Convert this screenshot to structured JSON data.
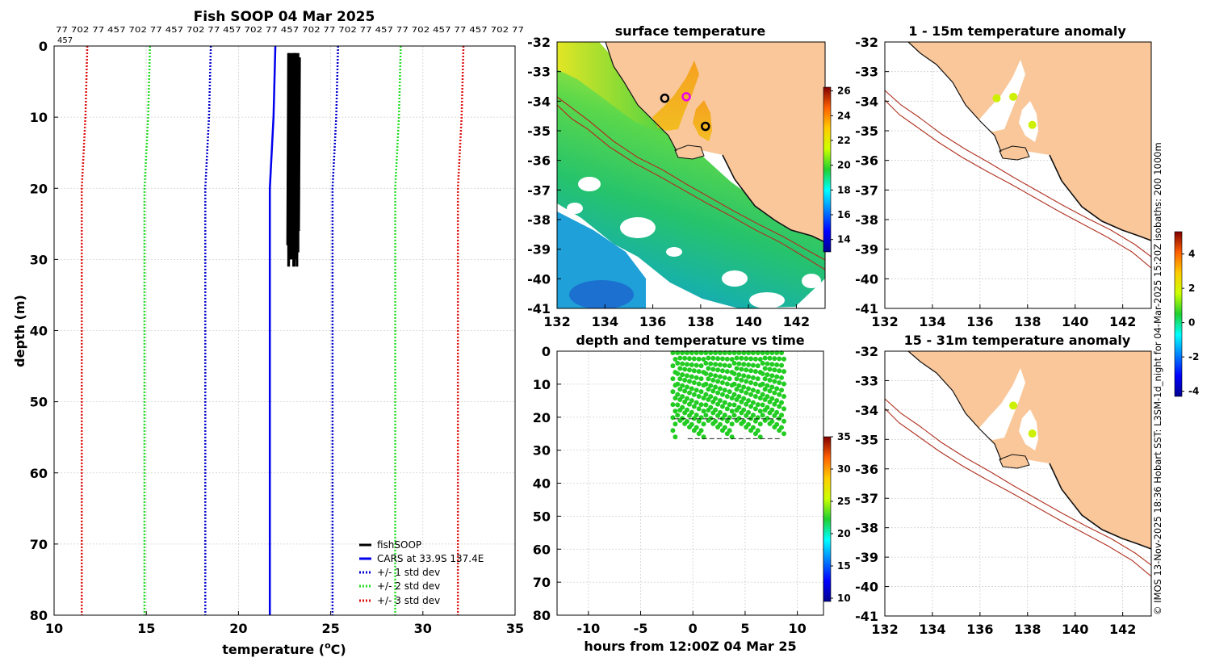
{
  "colors": {
    "land": "#f9c79a",
    "coast": "#111111",
    "isobath": "#b03020",
    "profile": "#000000",
    "cars": "#0000ee",
    "std1": "#0000cc",
    "std2": "#22dd22",
    "std3": "#dd1111",
    "fishDots": "#22cc22"
  },
  "chart_data": [
    {
      "id": "profile",
      "type": "line",
      "title": "Fish SOOP 04 Mar 2025",
      "xlabel": "temperature (",
      "xlabel_sup": "o",
      "xlabel_end": "C)",
      "ylabel": "depth (m)",
      "xlim": [
        10,
        35
      ],
      "ylim": [
        80,
        0
      ],
      "xticks": [
        "10",
        "15",
        "20",
        "25",
        "30",
        "35"
      ],
      "yticks": [
        "0",
        "10",
        "20",
        "30",
        "40",
        "50",
        "60",
        "70",
        "80"
      ],
      "grid": true,
      "top_strip_text": "77 702 77 457 702 77 457 702 77 457 702 77 457 702 77 702 77 457 77 702 457 77 457 702 77",
      "top_strip_text2": "457",
      "legend_position": "bottom-right",
      "series": [
        {
          "name": "fishSOOP",
          "kind": "band",
          "depth_min": 1,
          "depth_max": 31,
          "temp_low": 22.6,
          "temp_high": 23.3
        },
        {
          "name": "CARS at 33.9S 137.4E",
          "kind": "line",
          "points": [
            [
              22.0,
              0
            ],
            [
              21.9,
              10
            ],
            [
              21.7,
              20
            ],
            [
              21.7,
              80
            ]
          ]
        },
        {
          "name": "+/- 1 std dev",
          "kind": "dashed-pair",
          "left": [
            [
              18.5,
              0
            ],
            [
              18.4,
              10
            ],
            [
              18.2,
              20
            ],
            [
              18.2,
              80
            ]
          ],
          "right": [
            [
              25.4,
              0
            ],
            [
              25.3,
              10
            ],
            [
              25.1,
              20
            ],
            [
              25.1,
              80
            ]
          ]
        },
        {
          "name": "+/- 2 std dev",
          "kind": "dashed-pair",
          "left": [
            [
              15.2,
              0
            ],
            [
              15.1,
              10
            ],
            [
              14.9,
              20
            ],
            [
              14.9,
              80
            ]
          ],
          "right": [
            [
              28.8,
              0
            ],
            [
              28.7,
              10
            ],
            [
              28.5,
              20
            ],
            [
              28.5,
              80
            ]
          ]
        },
        {
          "name": "+/- 3 std dev",
          "kind": "dashed-pair",
          "left": [
            [
              11.8,
              0
            ],
            [
              11.7,
              10
            ],
            [
              11.5,
              20
            ],
            [
              11.5,
              80
            ]
          ],
          "right": [
            [
              32.2,
              0
            ],
            [
              32.1,
              10
            ],
            [
              31.9,
              20
            ],
            [
              31.9,
              80
            ]
          ]
        }
      ]
    },
    {
      "id": "sst",
      "type": "heatmap",
      "title": "surface temperature",
      "xlim": [
        132,
        143.2
      ],
      "ylim": [
        -41,
        -32
      ],
      "xticks": [
        "132",
        "134",
        "136",
        "138",
        "140",
        "142"
      ],
      "yticks": [
        "-32",
        "-33",
        "-34",
        "-35",
        "-36",
        "-37",
        "-38",
        "-39",
        "-40",
        "-41"
      ],
      "colorbar": {
        "min": 13,
        "max": 26.3,
        "ticks": [
          "14",
          "16",
          "18",
          "20",
          "22",
          "24",
          "26"
        ]
      },
      "markers": [
        {
          "lon": 136.5,
          "lat": -33.9,
          "color": "#000000"
        },
        {
          "lon": 137.4,
          "lat": -33.85,
          "color": "#ee00ee"
        },
        {
          "lon": 138.2,
          "lat": -34.85,
          "color": "#000000"
        }
      ]
    },
    {
      "id": "depth_time",
      "type": "scatter",
      "title": "depth and temperature vs time",
      "xlabel": "hours from 12:00Z 04 Mar 25",
      "xlim": [
        -13,
        12.5
      ],
      "ylim": [
        80,
        0
      ],
      "xticks": [
        "-10",
        "-5",
        "0",
        "5",
        "10"
      ],
      "yticks": [
        "0",
        "10",
        "20",
        "30",
        "40",
        "50",
        "60",
        "70",
        "80"
      ],
      "time_range": [
        -1.8,
        8.6
      ],
      "depth_range": [
        0.5,
        30
      ],
      "colorbar": {
        "min": 9.5,
        "max": 35,
        "ticks": [
          "10",
          "15",
          "20",
          "25",
          "30",
          "35"
        ]
      }
    },
    {
      "id": "anom1",
      "type": "map",
      "title": "1 - 15m temperature anomaly",
      "xlim": [
        132,
        143.2
      ],
      "ylim": [
        -41,
        -32
      ],
      "xticks": [
        "132",
        "134",
        "136",
        "138",
        "140",
        "142"
      ],
      "yticks": [
        "-32",
        "-33",
        "-34",
        "-35",
        "-36",
        "-37",
        "-38",
        "-39",
        "-40",
        "-41"
      ],
      "markers": [
        {
          "lon": 136.7,
          "lat": -33.9
        },
        {
          "lon": 137.4,
          "lat": -33.85
        },
        {
          "lon": 138.2,
          "lat": -34.8
        }
      ]
    },
    {
      "id": "anom2",
      "type": "map",
      "title": "15 - 31m temperature anomaly",
      "xlim": [
        132,
        143.2
      ],
      "ylim": [
        -41,
        -32
      ],
      "xticks": [
        "132",
        "134",
        "136",
        "138",
        "140",
        "142"
      ],
      "yticks": [
        "-32",
        "-33",
        "-34",
        "-35",
        "-36",
        "-37",
        "-38",
        "-39",
        "-40",
        "-41"
      ],
      "markers": [
        {
          "lon": 137.4,
          "lat": -33.85
        },
        {
          "lon": 138.2,
          "lat": -34.8
        }
      ],
      "colorbar": {
        "min": -4.3,
        "max": 5.3,
        "ticks": [
          "4",
          "2",
          "0",
          "-2",
          "-4"
        ]
      }
    }
  ],
  "credit": "© IMOS 13-Nov-2025 18:36 Hobart SST: L3SM-1d_night for 04-Mar-2025 15:20Z isobaths: 200  1000m"
}
